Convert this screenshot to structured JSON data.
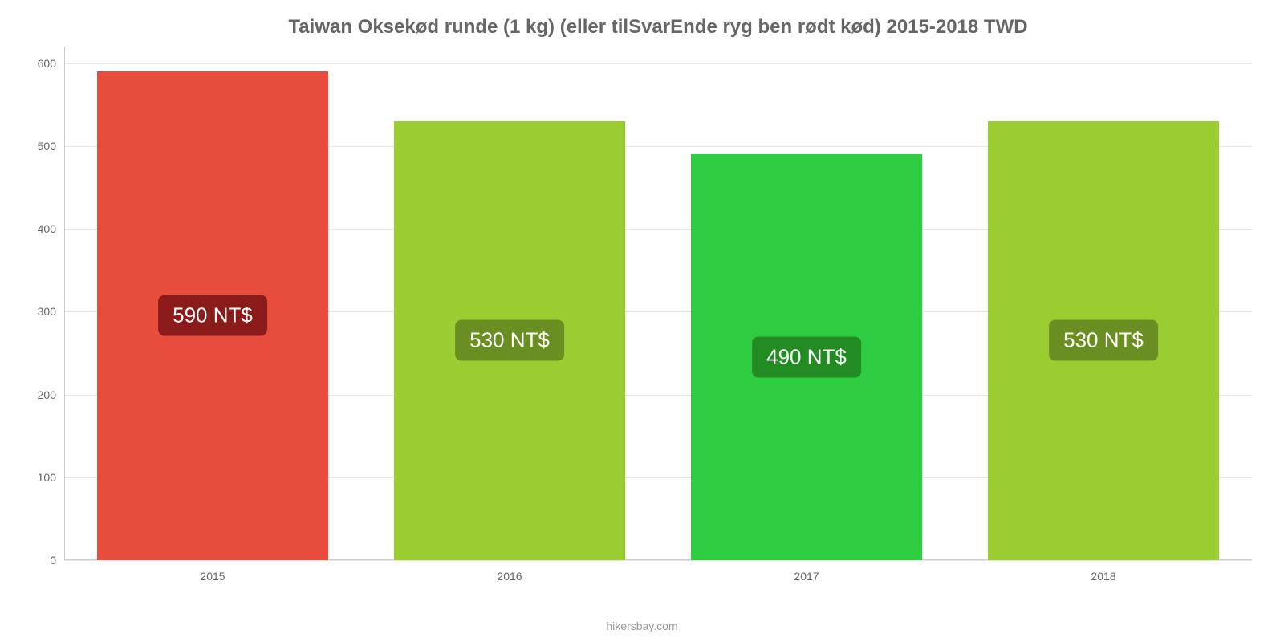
{
  "chart": {
    "type": "bar",
    "title": "Taiwan Oksekød runde (1 kg) (eller tilSvarEnde ryg ben rødt kød) 2015-2018 TWD",
    "title_fontsize": 24,
    "title_color": "#666666",
    "background_color": "#ffffff",
    "grid_color": "#e6e6e6",
    "axis_color": "#cccccc",
    "label_color": "#666666",
    "label_fontsize": 14,
    "ylim_min": 0,
    "ylim_max": 620,
    "yticks": [
      0,
      100,
      200,
      300,
      400,
      500,
      600
    ],
    "categories": [
      "2015",
      "2016",
      "2017",
      "2018"
    ],
    "values": [
      590,
      530,
      490,
      530
    ],
    "value_labels": [
      "590 NT$",
      "530 NT$",
      "490 NT$",
      "530 NT$"
    ],
    "bar_colors": [
      "#e74c3c",
      "#9acd32",
      "#2ecc40",
      "#9acd32"
    ],
    "badge_colors": [
      "#8b1a1a",
      "#6b8e23",
      "#228b22",
      "#6b8e23"
    ],
    "badge_fontsize": 26,
    "badge_text_color": "#ffffff",
    "bar_width_pct": 78,
    "footer": "hikersbay.com",
    "footer_color": "#999999",
    "footer_fontsize": 14
  }
}
